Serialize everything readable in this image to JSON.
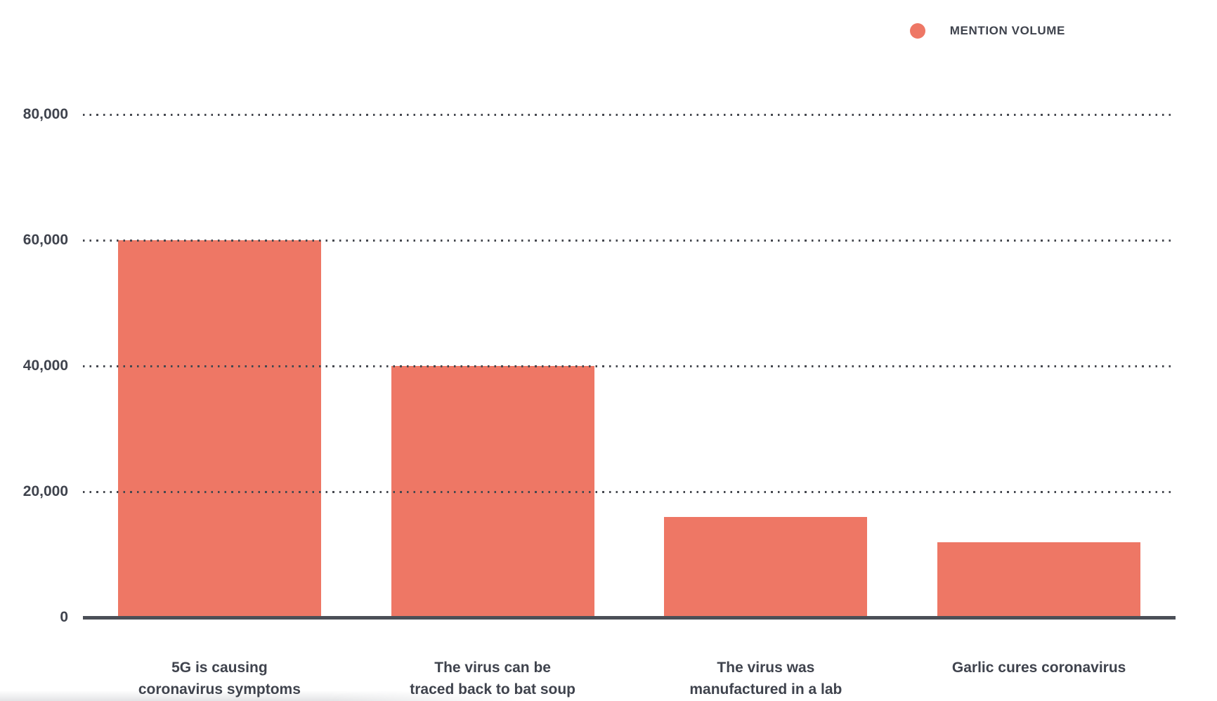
{
  "legend": {
    "label": "MENTION VOLUME"
  },
  "colors": {
    "bar": "#EE7765",
    "text": "#3F434D",
    "axis": "#4B4F57",
    "grid_dots": "#45484F"
  },
  "chart_data": {
    "type": "bar",
    "title": "",
    "series": [
      {
        "name": "MENTION VOLUME",
        "values": [
          60000,
          40000,
          16000,
          12000
        ]
      }
    ],
    "categories": [
      "5G is causing\ncoronavirus symptoms",
      "The virus can be\ntraced back to bat soup",
      "The virus was\nmanufactured in a lab",
      "Garlic cures coronavirus"
    ],
    "values": [
      60000,
      40000,
      16000,
      12000
    ],
    "xlabel": "",
    "ylabel": "",
    "ylim": [
      0,
      80000
    ],
    "ytick_labels": [
      "0",
      "20,000",
      "40,000",
      "60,000",
      "80,000"
    ],
    "ytick_values": [
      0,
      20000,
      40000,
      60000,
      80000
    ],
    "grid": "dotted-horizontal",
    "legend_position": "top-right",
    "bar_color": "#EE7765"
  }
}
